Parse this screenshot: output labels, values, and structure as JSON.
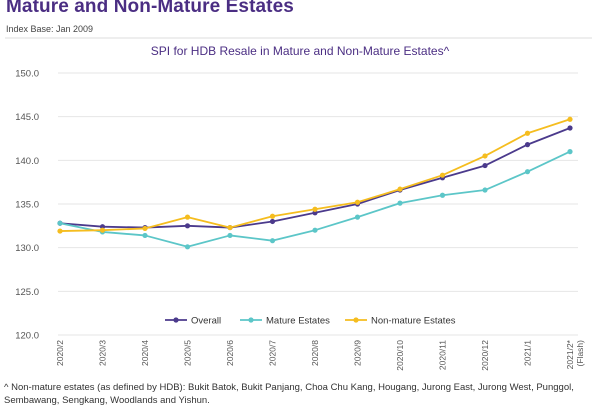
{
  "header": {
    "title": "Mature and Non-Mature Estates",
    "index_base": "Index Base: Jan 2009"
  },
  "chart_data": {
    "type": "line",
    "title": "SPI for HDB Resale in Mature and Non-Mature Estates^",
    "xlabel": "",
    "ylabel": "",
    "categories": [
      "2020/2",
      "2020/3",
      "2020/4",
      "2020/5",
      "2020/6",
      "2020/7",
      "2020/8",
      "2020/9",
      "2020/10",
      "2020/11",
      "2020/12",
      "2021/1",
      "2021/2* (Flash)"
    ],
    "category_labels": [
      [
        "2020/2"
      ],
      [
        "2020/3"
      ],
      [
        "2020/4"
      ],
      [
        "2020/5"
      ],
      [
        "2020/6"
      ],
      [
        "2020/7"
      ],
      [
        "2020/8"
      ],
      [
        "2020/9"
      ],
      [
        "2020/10"
      ],
      [
        "2020/11"
      ],
      [
        "2020/12"
      ],
      [
        "2021/1"
      ],
      [
        "2021/2*",
        "(Flash)"
      ]
    ],
    "ylim": [
      120,
      150
    ],
    "yticks": [
      "150.0",
      "145.0",
      "140.0",
      "135.0",
      "130.0",
      "125.0",
      "120.0"
    ],
    "ytick_values": [
      150,
      145,
      140,
      135,
      130,
      125,
      120
    ],
    "grid": true,
    "legend_position": "bottom-center",
    "series": [
      {
        "name": "Overall",
        "color": "#4b3a8c",
        "values": [
          132.8,
          132.4,
          132.3,
          132.5,
          132.3,
          133.0,
          134.0,
          135.0,
          136.6,
          138.0,
          139.4,
          141.8,
          143.7
        ]
      },
      {
        "name": "Mature Estates",
        "color": "#5cc6c8",
        "values": [
          132.8,
          131.8,
          131.4,
          130.1,
          131.4,
          130.8,
          132.0,
          133.5,
          135.1,
          136.0,
          136.6,
          138.7,
          141.0
        ]
      },
      {
        "name": "Non-mature Estates",
        "color": "#f5bd1f",
        "values": [
          131.9,
          132.0,
          132.2,
          133.5,
          132.3,
          133.6,
          134.4,
          135.2,
          136.7,
          138.3,
          140.5,
          143.1,
          144.7
        ]
      }
    ]
  },
  "footnote": {
    "text": "^ Non-mature estates (as defined by HDB): Bukit Batok, Bukit Panjang, Choa Chu Kang, Hougang, Jurong East, Jurong West, Punggol, Sembawang, Sengkang, Woodlands and Yishun."
  }
}
